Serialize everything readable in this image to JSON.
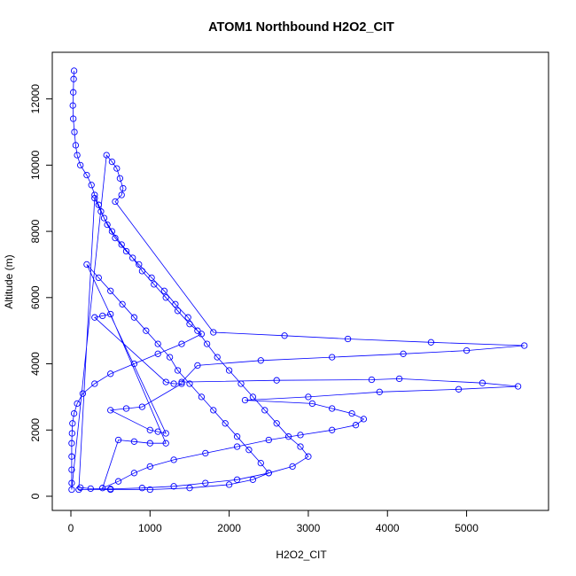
{
  "chart_data": {
    "type": "scatter",
    "title": "ATOM1 Northbound H2O2_CIT",
    "xlabel": "H2O2_CIT",
    "ylabel": "Altitude (m)",
    "xlim": [
      0,
      5800
    ],
    "ylim": [
      0,
      12900
    ],
    "xticks": [
      0,
      1000,
      2000,
      3000,
      4000,
      5000
    ],
    "yticks": [
      0,
      2000,
      4000,
      6000,
      8000,
      10000,
      12000
    ],
    "grid": false,
    "legend": "none",
    "marker": "open-circle",
    "connected": true,
    "color": "#0000ff",
    "series": [
      {
        "points": [
          [
            40,
            12850
          ],
          [
            35,
            12600
          ],
          [
            30,
            12200
          ],
          [
            25,
            11800
          ],
          [
            30,
            11400
          ],
          [
            45,
            11000
          ],
          [
            60,
            10600
          ],
          [
            80,
            10300
          ],
          [
            120,
            10000
          ],
          [
            200,
            9700
          ],
          [
            260,
            9400
          ],
          [
            300,
            9100
          ],
          [
            350,
            8800
          ],
          [
            420,
            8400
          ],
          [
            520,
            8000
          ],
          [
            640,
            7600
          ],
          [
            780,
            7200
          ],
          [
            900,
            6800
          ],
          [
            1050,
            6400
          ],
          [
            1200,
            6000
          ],
          [
            1350,
            5600
          ],
          [
            1500,
            5200
          ],
          [
            1650,
            4900
          ],
          [
            1400,
            4600
          ],
          [
            1100,
            4300
          ],
          [
            800,
            4000
          ],
          [
            500,
            3700
          ],
          [
            300,
            3400
          ],
          [
            150,
            3100
          ],
          [
            80,
            2800
          ],
          [
            40,
            2500
          ],
          [
            20,
            2200
          ],
          [
            15,
            1900
          ],
          [
            10,
            1600
          ],
          [
            10,
            1200
          ],
          [
            10,
            800
          ],
          [
            10,
            400
          ],
          [
            10,
            200
          ],
          [
            450,
            10300
          ],
          [
            520,
            10100
          ],
          [
            580,
            9900
          ],
          [
            620,
            9600
          ],
          [
            660,
            9300
          ],
          [
            640,
            9100
          ],
          [
            560,
            8900
          ],
          [
            1800,
            4950
          ],
          [
            2700,
            4850
          ],
          [
            3500,
            4750
          ],
          [
            4550,
            4650
          ],
          [
            5730,
            4550
          ],
          [
            5000,
            4400
          ],
          [
            4200,
            4300
          ],
          [
            3300,
            4200
          ],
          [
            2400,
            4100
          ],
          [
            1600,
            3950
          ],
          [
            1400,
            3450
          ],
          [
            2600,
            3500
          ],
          [
            3800,
            3520
          ],
          [
            4150,
            3550
          ],
          [
            5200,
            3420
          ],
          [
            5650,
            3320
          ],
          [
            4900,
            3230
          ],
          [
            3900,
            3150
          ],
          [
            3000,
            3000
          ],
          [
            2200,
            2900
          ],
          [
            3050,
            2800
          ],
          [
            3300,
            2650
          ],
          [
            3550,
            2500
          ],
          [
            3700,
            2330
          ],
          [
            3600,
            2150
          ],
          [
            3300,
            2000
          ],
          [
            2900,
            1850
          ],
          [
            2500,
            1700
          ],
          [
            2100,
            1500
          ],
          [
            1700,
            1300
          ],
          [
            1300,
            1100
          ],
          [
            1000,
            900
          ],
          [
            800,
            700
          ],
          [
            600,
            450
          ],
          [
            400,
            250
          ],
          [
            600,
            1700
          ],
          [
            800,
            1650
          ],
          [
            1000,
            1600
          ],
          [
            1200,
            1600
          ],
          [
            500,
            5500
          ],
          [
            400,
            5450
          ],
          [
            300,
            5400
          ],
          [
            1200,
            3450
          ],
          [
            1300,
            3400
          ],
          [
            1400,
            3400
          ],
          [
            900,
            2700
          ],
          [
            700,
            2650
          ],
          [
            500,
            2600
          ],
          [
            1000,
            2000
          ],
          [
            1100,
            1950
          ],
          [
            1200,
            1900
          ],
          [
            200,
            7000
          ],
          [
            350,
            6600
          ],
          [
            500,
            6200
          ],
          [
            650,
            5800
          ],
          [
            800,
            5400
          ],
          [
            950,
            5000
          ],
          [
            1100,
            4600
          ],
          [
            1250,
            4200
          ],
          [
            1350,
            3800
          ],
          [
            1500,
            3400
          ],
          [
            1650,
            3000
          ],
          [
            1800,
            2600
          ],
          [
            1950,
            2200
          ],
          [
            2100,
            1800
          ],
          [
            2250,
            1400
          ],
          [
            2400,
            1000
          ],
          [
            2500,
            700
          ],
          [
            2300,
            500
          ],
          [
            2000,
            350
          ],
          [
            1500,
            250
          ],
          [
            1000,
            200
          ],
          [
            500,
            200
          ],
          [
            100,
            200
          ],
          [
            300,
            9000
          ],
          [
            380,
            8600
          ],
          [
            460,
            8200
          ],
          [
            560,
            7800
          ],
          [
            700,
            7400
          ],
          [
            860,
            7000
          ],
          [
            1020,
            6600
          ],
          [
            1180,
            6200
          ],
          [
            1320,
            5800
          ],
          [
            1480,
            5400
          ],
          [
            1600,
            5000
          ],
          [
            1720,
            4600
          ],
          [
            1850,
            4200
          ],
          [
            2000,
            3800
          ],
          [
            2150,
            3400
          ],
          [
            2300,
            3000
          ],
          [
            2450,
            2600
          ],
          [
            2600,
            2200
          ],
          [
            2750,
            1800
          ],
          [
            2900,
            1500
          ],
          [
            3000,
            1200
          ],
          [
            2800,
            900
          ],
          [
            2500,
            700
          ],
          [
            2100,
            500
          ],
          [
            1700,
            400
          ],
          [
            1300,
            300
          ],
          [
            900,
            250
          ],
          [
            500,
            220
          ],
          [
            250,
            230
          ],
          [
            120,
            260
          ]
        ]
      }
    ]
  }
}
